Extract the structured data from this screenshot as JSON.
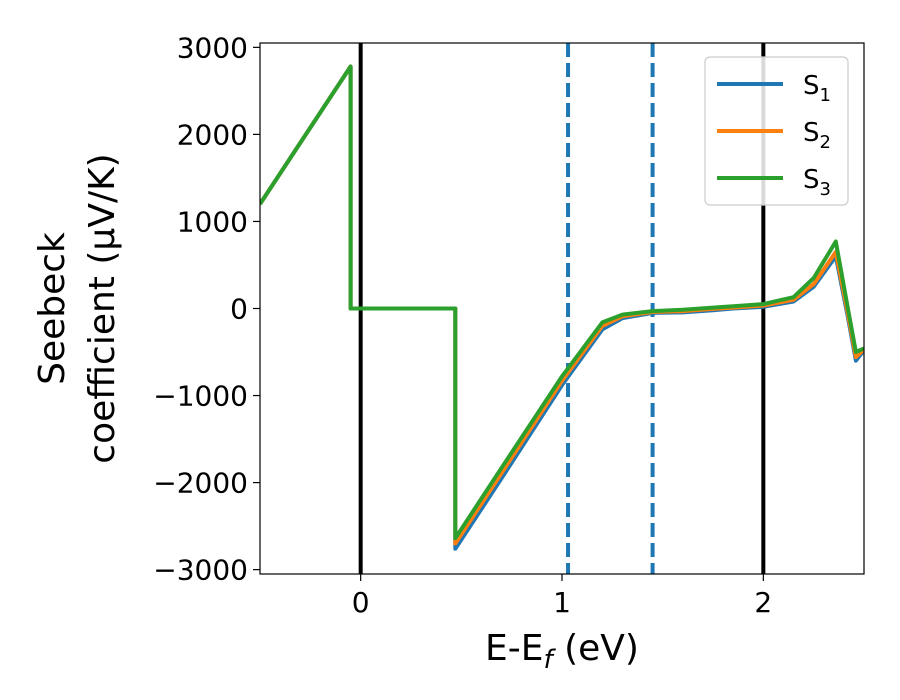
{
  "chart_data": {
    "type": "line",
    "title": "",
    "xlabel_main": "E-E",
    "xlabel_sub": "f",
    "xlabel_unit": " (eV)",
    "ylabel_line1": "Seebeck",
    "ylabel_line2": "coefficient  (μV/K)",
    "xlim": [
      -0.5,
      2.5
    ],
    "ylim": [
      -3050,
      3050
    ],
    "xticks": [
      0,
      1,
      2
    ],
    "xtick_labels": [
      "0",
      "1",
      "2"
    ],
    "yticks": [
      -3000,
      -2000,
      -1000,
      0,
      1000,
      2000,
      3000
    ],
    "ytick_labels": [
      "−3000",
      "−2000",
      "−1000",
      "0",
      "1000",
      "2000",
      "3000"
    ],
    "grid": false,
    "legend_position": "top-right",
    "vlines_solid": [
      0.0,
      2.0
    ],
    "vlines_dashed": [
      1.03,
      1.45
    ],
    "vline_solid_color": "#000000",
    "vline_dashed_color": "#1f77b4",
    "series": [
      {
        "name": "S",
        "sub": "1",
        "color": "#1f77b4",
        "x": [
          -0.5,
          -0.05,
          -0.05,
          0.47,
          0.47,
          0.7,
          1.0,
          1.2,
          1.3,
          1.45,
          1.6,
          1.75,
          1.85,
          2.0,
          2.15,
          2.25,
          2.36,
          2.42,
          2.46,
          2.5
        ],
        "y": [
          1200,
          2780,
          0,
          0,
          -2760,
          -1950,
          -880,
          -240,
          -110,
          -50,
          -45,
          -20,
          0,
          20,
          80,
          250,
          600,
          -100,
          -600,
          -480
        ]
      },
      {
        "name": "S",
        "sub": "2",
        "color": "#ff7f0e",
        "x": [
          -0.5,
          -0.05,
          -0.05,
          0.47,
          0.47,
          0.7,
          1.0,
          1.2,
          1.3,
          1.45,
          1.6,
          1.75,
          1.85,
          2.0,
          2.15,
          2.25,
          2.36,
          2.42,
          2.46,
          2.5
        ],
        "y": [
          1200,
          2780,
          0,
          0,
          -2700,
          -1890,
          -830,
          -200,
          -90,
          -40,
          -30,
          -5,
          10,
          35,
          100,
          280,
          650,
          -60,
          -560,
          -470
        ]
      },
      {
        "name": "S",
        "sub": "3",
        "color": "#2ca02c",
        "x": [
          -0.5,
          -0.05,
          -0.05,
          0.47,
          0.47,
          0.7,
          1.0,
          1.2,
          1.3,
          1.45,
          1.6,
          1.75,
          1.85,
          2.0,
          2.15,
          2.25,
          2.36,
          2.42,
          2.46,
          2.5
        ],
        "y": [
          1200,
          2780,
          0,
          0,
          -2640,
          -1830,
          -780,
          -160,
          -70,
          -30,
          -15,
          10,
          25,
          50,
          130,
          350,
          770,
          0,
          -500,
          -460
        ]
      }
    ]
  }
}
